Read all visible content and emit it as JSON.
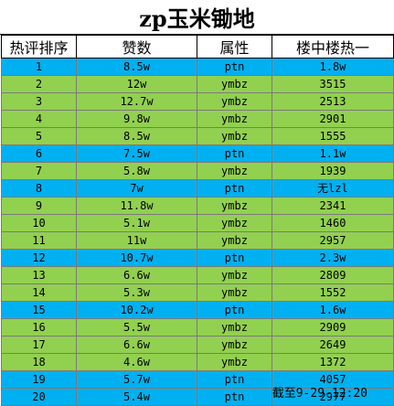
{
  "title": "zp玉米锄地",
  "columns": [
    "热评排序",
    "赞数",
    "属性",
    "楼中楼热一"
  ],
  "rows": [
    {
      "rank": "1",
      "likes": "8.5w",
      "attr": "ptn",
      "hot": "1.8w",
      "color": "blue"
    },
    {
      "rank": "2",
      "likes": "12w",
      "attr": "ymbz",
      "hot": "3515",
      "color": "green"
    },
    {
      "rank": "3",
      "likes": "12.7w",
      "attr": "ymbz",
      "hot": "2513",
      "color": "green"
    },
    {
      "rank": "4",
      "likes": "9.8w",
      "attr": "ymbz",
      "hot": "2901",
      "color": "green"
    },
    {
      "rank": "5",
      "likes": "8.5w",
      "attr": "ymbz",
      "hot": "1555",
      "color": "green"
    },
    {
      "rank": "6",
      "likes": "7.5w",
      "attr": "ptn",
      "hot": "1.1w",
      "color": "blue"
    },
    {
      "rank": "7",
      "likes": "5.8w",
      "attr": "ymbz",
      "hot": "1939",
      "color": "green"
    },
    {
      "rank": "8",
      "likes": "7w",
      "attr": "ptn",
      "hot": "无lzl",
      "color": "blue"
    },
    {
      "rank": "9",
      "likes": "11.8w",
      "attr": "ymbz",
      "hot": "2341",
      "color": "green"
    },
    {
      "rank": "10",
      "likes": "5.1w",
      "attr": "ymbz",
      "hot": "1460",
      "color": "green"
    },
    {
      "rank": "11",
      "likes": "11w",
      "attr": "ymbz",
      "hot": "2957",
      "color": "green"
    },
    {
      "rank": "12",
      "likes": "10.7w",
      "attr": "ptn",
      "hot": "2.3w",
      "color": "blue"
    },
    {
      "rank": "13",
      "likes": "6.6w",
      "attr": "ymbz",
      "hot": "2809",
      "color": "green"
    },
    {
      "rank": "14",
      "likes": "5.3w",
      "attr": "ymbz",
      "hot": "1552",
      "color": "green"
    },
    {
      "rank": "15",
      "likes": "10.2w",
      "attr": "ptn",
      "hot": "1.6w",
      "color": "blue"
    },
    {
      "rank": "16",
      "likes": "5.5w",
      "attr": "ymbz",
      "hot": "2909",
      "color": "green"
    },
    {
      "rank": "17",
      "likes": "6.6w",
      "attr": "ymbz",
      "hot": "2649",
      "color": "green"
    },
    {
      "rank": "18",
      "likes": "4.6w",
      "attr": "ymbz",
      "hot": "1372",
      "color": "green"
    },
    {
      "rank": "19",
      "likes": "5.7w",
      "attr": "ptn",
      "hot": "4057",
      "color": "blue"
    },
    {
      "rank": "20",
      "likes": "5.4w",
      "attr": "ptn",
      "hot": "2977",
      "color": "blue"
    }
  ],
  "footer": "截至9-29-12:20",
  "colors": {
    "green": "#92d050",
    "blue": "#00b0f0"
  }
}
